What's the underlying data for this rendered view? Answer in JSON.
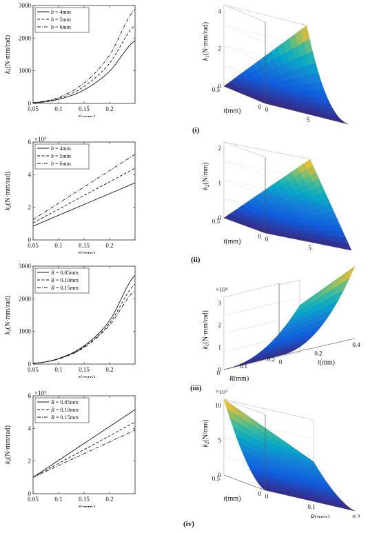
{
  "row_labels": [
    "(i)",
    "(ii)",
    "(iii)",
    "(iv)"
  ],
  "chart_data": [
    {
      "type": "line",
      "ylabel_main": "k",
      "ylabel_sub": "1",
      "ylabel_unit": "(N·mm/rad)",
      "xlabel_main": "t",
      "xlabel_unit": "(mm)",
      "x_ticks": [
        "0.05",
        "0.1",
        "0.15",
        "0.2"
      ],
      "y_ticks": [
        "0",
        "1000",
        "2000",
        "3000"
      ],
      "exponent": "",
      "xlim": [
        0.05,
        0.25
      ],
      "ylim": [
        0,
        3000
      ],
      "legend_var": "b",
      "legend_placement": "top-left",
      "x": [
        0.05,
        0.1,
        0.15,
        0.2,
        0.25
      ],
      "series": [
        {
          "name": " = 4mm",
          "style": "solid",
          "values": [
            15,
            123,
            415,
            985,
            1920
          ]
        },
        {
          "name": " = 5mm",
          "style": "dashed",
          "values": [
            19,
            154,
            520,
            1230,
            2400
          ]
        },
        {
          "name": " = 6mm",
          "style": "dashdot",
          "values": [
            23,
            185,
            625,
            1480,
            2890
          ]
        }
      ]
    },
    {
      "type": "line",
      "ylabel_main": "k",
      "ylabel_sub": "2",
      "ylabel_unit": "(N·mm/rad)",
      "xlabel_main": "t",
      "xlabel_unit": "(mm)",
      "x_ticks": [
        "0.05",
        "0.1",
        "0.15",
        "0.2"
      ],
      "y_ticks": [
        "0",
        "2",
        "4",
        "6"
      ],
      "exponent": "×10⁵",
      "xlim": [
        0.05,
        0.25
      ],
      "ylim": [
        0,
        6
      ],
      "legend_var": "b",
      "legend_placement": "top-left",
      "x": [
        0.05,
        0.25
      ],
      "series": [
        {
          "name": " = 4mm",
          "style": "solid",
          "values": [
            0.85,
            3.5
          ]
        },
        {
          "name": " = 5mm",
          "style": "dashed",
          "values": [
            1.05,
            4.4
          ]
        },
        {
          "name": " = 6mm",
          "style": "dashdot",
          "values": [
            1.25,
            5.25
          ]
        }
      ]
    },
    {
      "type": "line",
      "ylabel_main": "k",
      "ylabel_sub": "1",
      "ylabel_unit": "(N·mm/rad)",
      "xlabel_main": "t",
      "xlabel_unit": "(mm)",
      "x_ticks": [
        "0.05",
        "0.1",
        "0.15",
        "0.2"
      ],
      "y_ticks": [
        "0",
        "1000",
        "2000",
        "3000"
      ],
      "exponent": "",
      "xlim": [
        0.05,
        0.25
      ],
      "ylim": [
        0,
        3000
      ],
      "legend_var": "R",
      "legend_placement": "top-left",
      "x": [
        0.05,
        0.1,
        0.15,
        0.2,
        0.25
      ],
      "series": [
        {
          "name": " = 0.05mm",
          "style": "solid",
          "values": [
            20,
            170,
            560,
            1330,
            2720
          ]
        },
        {
          "name": " = 0.10mm",
          "style": "dashed",
          "values": [
            20,
            160,
            530,
            1250,
            2450
          ]
        },
        {
          "name": " = 0.15mm",
          "style": "dashdot",
          "values": [
            20,
            155,
            505,
            1190,
            2250
          ]
        }
      ]
    },
    {
      "type": "line",
      "ylabel_main": "k",
      "ylabel_sub": "2",
      "ylabel_unit": "(N·mm/rad)",
      "xlabel_main": "t",
      "xlabel_unit": "(mm)",
      "x_ticks": [
        "0.05",
        "0.1",
        "0.15",
        "0.2"
      ],
      "y_ticks": [
        "0",
        "2",
        "4",
        "6"
      ],
      "exponent": "×10⁵",
      "xlim": [
        0.05,
        0.25
      ],
      "ylim": [
        0,
        6
      ],
      "legend_var": "R",
      "legend_placement": "top-left",
      "x": [
        0.05,
        0.25
      ],
      "series": [
        {
          "name": " = 0.05mm",
          "style": "solid",
          "values": [
            1.0,
            5.15
          ]
        },
        {
          "name": " = 0.10mm",
          "style": "dashed",
          "values": [
            1.0,
            4.4
          ]
        },
        {
          "name": " = 0.15mm",
          "style": "dashdot",
          "values": [
            1.0,
            3.9
          ]
        }
      ]
    },
    {
      "type": "surface",
      "zlabel_main": "k",
      "zlabel_sub": "1",
      "zlabel_unit": "(N·mm/rad)",
      "exponent": "×10⁴",
      "z_ticks": [
        "0",
        "2",
        "4"
      ],
      "a_ticks": [
        "0.5",
        "0"
      ],
      "b_ticks": [
        "0",
        "5",
        "10"
      ],
      "a_label_main": "t",
      "a_label_unit": "(mm)",
      "b_label_main": "b",
      "b_label_unit": "(mm)"
    },
    {
      "type": "surface",
      "zlabel_main": "k",
      "zlabel_sub": "2",
      "zlabel_unit": "(N/mm)",
      "exponent": "×10⁶",
      "z_ticks": [
        "0",
        "1",
        "2"
      ],
      "a_ticks": [
        "0.5",
        "0"
      ],
      "b_ticks": [
        "0",
        "5",
        "10"
      ],
      "a_label_main": "t",
      "a_label_unit": "(mm)",
      "b_label_main": "b",
      "b_label_unit": "(mm)"
    },
    {
      "type": "surface",
      "zlabel_main": "k",
      "zlabel_sub": "1",
      "zlabel_unit": "(N·mm/rad)",
      "exponent": "×10⁴",
      "z_ticks": [
        "0",
        "1",
        "2",
        "3"
      ],
      "a_ticks": [
        "0",
        "0.1",
        "0.2"
      ],
      "b_ticks": [
        "0",
        "0.2",
        "0.4"
      ],
      "a_label_main": "R",
      "a_label_unit": "(mm)",
      "b_label_main": "t",
      "b_label_unit": "(mm)"
    },
    {
      "type": "surface",
      "zlabel_main": "k",
      "zlabel_sub": "2",
      "zlabel_unit": "(N/mm)",
      "exponent": "×10⁵",
      "z_ticks": [
        "0",
        "5",
        "10"
      ],
      "a_ticks": [
        "0.5",
        "0"
      ],
      "b_ticks": [
        "0",
        "0.1",
        "0.2"
      ],
      "a_label_main": "t",
      "a_label_unit": "(mm)",
      "b_label_main": "R",
      "b_label_unit": "(mm)"
    }
  ]
}
